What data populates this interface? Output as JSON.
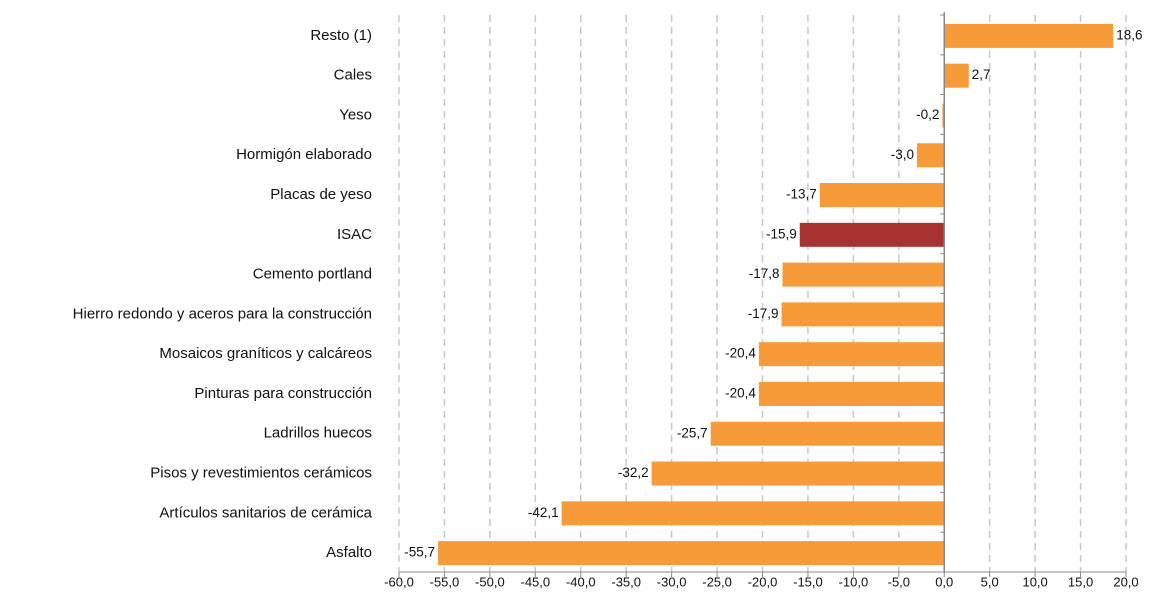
{
  "chart_data": {
    "type": "bar",
    "orientation": "horizontal",
    "categories": [
      "Resto (1)",
      "Cales",
      "Yeso",
      "Hormigón elaborado",
      "Placas de yeso",
      "ISAC",
      "Cemento portland",
      "Hierro redondo y aceros para la construcción",
      "Mosaicos graníticos y calcáreos",
      "Pinturas para construcción",
      "Ladrillos huecos",
      "Pisos y revestimientos cerámicos",
      "Artículos sanitarios de cerámica",
      "Asfalto"
    ],
    "values": [
      18.6,
      2.7,
      -0.2,
      -3.0,
      -13.7,
      -15.9,
      -17.8,
      -17.9,
      -20.4,
      -20.4,
      -25.7,
      -32.2,
      -42.1,
      -55.7
    ],
    "value_labels": [
      "18,6",
      "2,7",
      "-0,2",
      "-3,0",
      "-13,7",
      "-15,9",
      "-17,8",
      "-17,9",
      "-20,4",
      "-20,4",
      "-25,7",
      "-32,2",
      "-42,1",
      "-55,7"
    ],
    "colors": [
      "#f79a3a",
      "#f79a3a",
      "#f79a3a",
      "#f79a3a",
      "#f79a3a",
      "#a83232",
      "#f79a3a",
      "#f79a3a",
      "#f79a3a",
      "#f79a3a",
      "#f79a3a",
      "#f79a3a",
      "#f79a3a",
      "#f79a3a"
    ],
    "xlim": [
      -60,
      20
    ],
    "xticks": [
      {
        "value": -60,
        "label": "-60,0"
      },
      {
        "value": -55,
        "label": "-55,0"
      },
      {
        "value": -50,
        "label": "-50,0"
      },
      {
        "value": -45,
        "label": "-45,0"
      },
      {
        "value": -40,
        "label": "-40,0"
      },
      {
        "value": -35,
        "label": "-35,0"
      },
      {
        "value": -30,
        "label": "-30,0"
      },
      {
        "value": -25,
        "label": "-25,0"
      },
      {
        "value": -20,
        "label": "-20,0"
      },
      {
        "value": -15,
        "label": "-15,0"
      },
      {
        "value": -10,
        "label": "-10,0"
      },
      {
        "value": -5,
        "label": "-5,0"
      },
      {
        "value": 0,
        "label": "0,0"
      },
      {
        "value": 5,
        "label": "5,0"
      },
      {
        "value": 10,
        "label": "10,0"
      },
      {
        "value": 15,
        "label": "15,0"
      },
      {
        "value": 20,
        "label": "20,0"
      }
    ],
    "grid": true
  }
}
